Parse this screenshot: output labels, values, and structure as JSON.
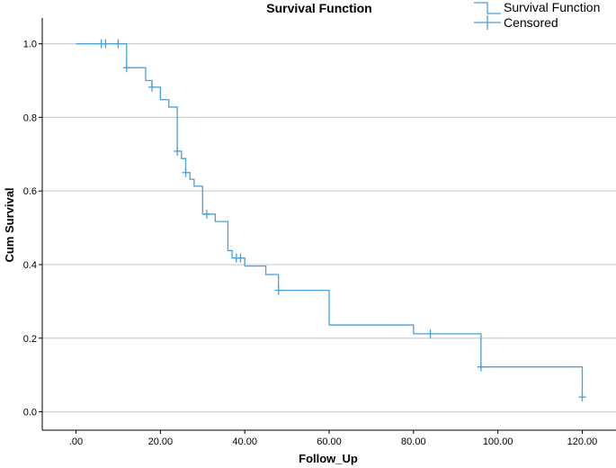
{
  "chart_data": {
    "type": "line",
    "title": "Survival Function",
    "xlabel": "Follow_Up",
    "ylabel": "Cum Survival",
    "xlim": [
      -8,
      128
    ],
    "ylim": [
      -0.05,
      1.07
    ],
    "xticks": [
      0,
      20,
      40,
      60,
      80,
      100,
      120
    ],
    "xtick_labels": [
      ".00",
      "20.00",
      "40.00",
      "60.00",
      "80.00",
      "100.00",
      "120.00"
    ],
    "yticks": [
      0.0,
      0.2,
      0.4,
      0.6,
      0.8,
      1.0
    ],
    "ytick_labels": [
      "0.0",
      "0.2",
      "0.4",
      "0.6",
      "0.8",
      "1.0"
    ],
    "grid": "horizontal",
    "legend_position": "top-right",
    "colors": {
      "line": "#4a9fdc",
      "grid": "#cfcfcf",
      "axis": "#000000"
    },
    "series": [
      {
        "name": "Survival Function",
        "step": "post",
        "points": [
          [
            0,
            1.0
          ],
          [
            12,
            0.935
          ],
          [
            16.5,
            0.9
          ],
          [
            18,
            0.882
          ],
          [
            20,
            0.848
          ],
          [
            22,
            0.828
          ],
          [
            24,
            0.708
          ],
          [
            25,
            0.688
          ],
          [
            26,
            0.65
          ],
          [
            27,
            0.632
          ],
          [
            28,
            0.613
          ],
          [
            30,
            0.537
          ],
          [
            33,
            0.517
          ],
          [
            36,
            0.438
          ],
          [
            37,
            0.418
          ],
          [
            40,
            0.396
          ],
          [
            45,
            0.373
          ],
          [
            48,
            0.33
          ],
          [
            60,
            0.236
          ],
          [
            80,
            0.212
          ],
          [
            96,
            0.122
          ],
          [
            120,
            0.04
          ]
        ]
      },
      {
        "name": "Censored",
        "points": [
          [
            6,
            1.0
          ],
          [
            7,
            1.0
          ],
          [
            10,
            1.0
          ],
          [
            12,
            0.935
          ],
          [
            18,
            0.882
          ],
          [
            24,
            0.708
          ],
          [
            26,
            0.65
          ],
          [
            31,
            0.537
          ],
          [
            38,
            0.418
          ],
          [
            39,
            0.418
          ],
          [
            48,
            0.33
          ],
          [
            84,
            0.212
          ],
          [
            96,
            0.122
          ],
          [
            120,
            0.04
          ]
        ]
      }
    ]
  }
}
